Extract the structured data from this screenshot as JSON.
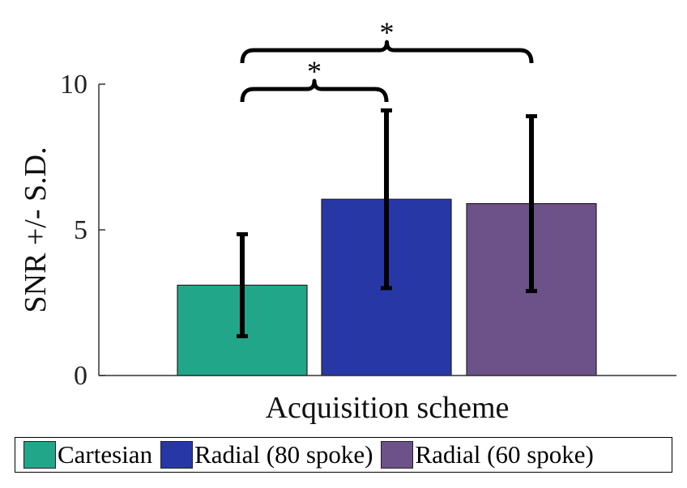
{
  "chart_data": {
    "type": "bar",
    "categories": [
      "Cartesian",
      "Radial (80 spoke)",
      "Radial (60 spoke)"
    ],
    "values": [
      3.1,
      6.05,
      5.9
    ],
    "error_sd": [
      1.75,
      3.05,
      3.0
    ],
    "colors": [
      "#22a68a",
      "#2737a6",
      "#6d5189"
    ],
    "xlabel": "Acquisition scheme",
    "ylabel": "SNR +/- S.D.",
    "ylim": [
      0,
      10
    ],
    "yticks": [
      0,
      5,
      10
    ],
    "grid": false,
    "legend": {
      "placement": "bottom",
      "entries": [
        "Cartesian",
        "Radial (80 spoke)",
        "Radial (60 spoke)"
      ]
    },
    "annotations": [
      {
        "text": "*",
        "from": "Cartesian",
        "to": "Radial (80 spoke)"
      },
      {
        "text": "*",
        "from": "Cartesian",
        "to": "Radial (60 spoke)"
      }
    ]
  }
}
